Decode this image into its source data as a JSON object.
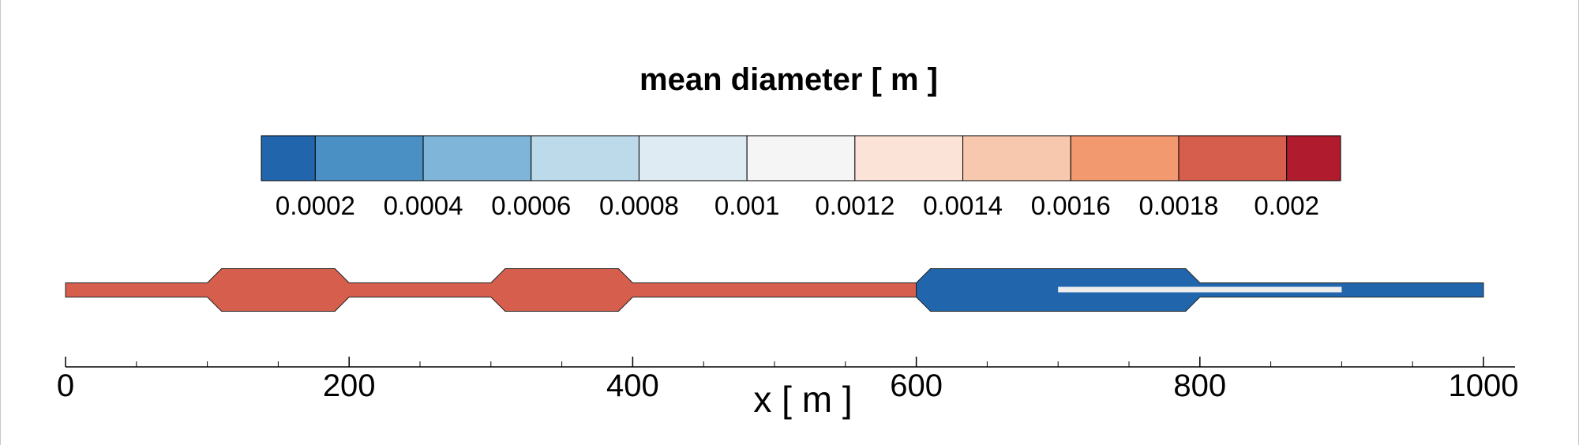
{
  "chart_data": {
    "type": "heatmap",
    "title": "mean diameter [ m ]",
    "xlabel": "x [ m ]",
    "xlim": [
      0,
      1000
    ],
    "x_ticks": [
      0,
      200,
      400,
      600,
      800,
      1000
    ],
    "x_minor_step": 50,
    "colorbar": {
      "levels": [
        0.0001,
        0.0002,
        0.0004,
        0.0006,
        0.0008,
        0.001,
        0.0012,
        0.0014,
        0.0016,
        0.0018,
        0.002,
        0.0021
      ],
      "colors": [
        "#2166ac",
        "#4a90c4",
        "#7fb5d8",
        "#bcdaea",
        "#deebf3",
        "#f5f5f5",
        "#fbe4d7",
        "#f8c8ae",
        "#f2996f",
        "#d65e4d",
        "#b01b2e"
      ],
      "tick_values": [
        0.0002,
        0.0004,
        0.0006,
        0.0008,
        0.001,
        0.0012,
        0.0014,
        0.0016,
        0.0018,
        0.002
      ],
      "tick_labels": [
        "0.0002",
        "0.0004",
        "0.0006",
        "0.0008",
        "0.001",
        "0.0012",
        "0.0014",
        "0.0016",
        "0.0018",
        "0.002"
      ]
    },
    "domain_segments": [
      {
        "x_start": 0,
        "x_end": 600,
        "mean_diameter": 0.0018,
        "color": "#d65e4d"
      },
      {
        "x_start": 600,
        "x_end": 1000,
        "mean_diameter": 0.0002,
        "color": "#2166ac"
      }
    ],
    "pipe": {
      "wide_sections": [
        {
          "x_start": 100,
          "x_end": 200
        },
        {
          "x_start": 300,
          "x_end": 400
        },
        {
          "x_start": 600,
          "x_end": 800
        }
      ]
    },
    "inner_bar": {
      "x_start": 700,
      "x_end": 900,
      "color": "#eeeeee"
    }
  }
}
